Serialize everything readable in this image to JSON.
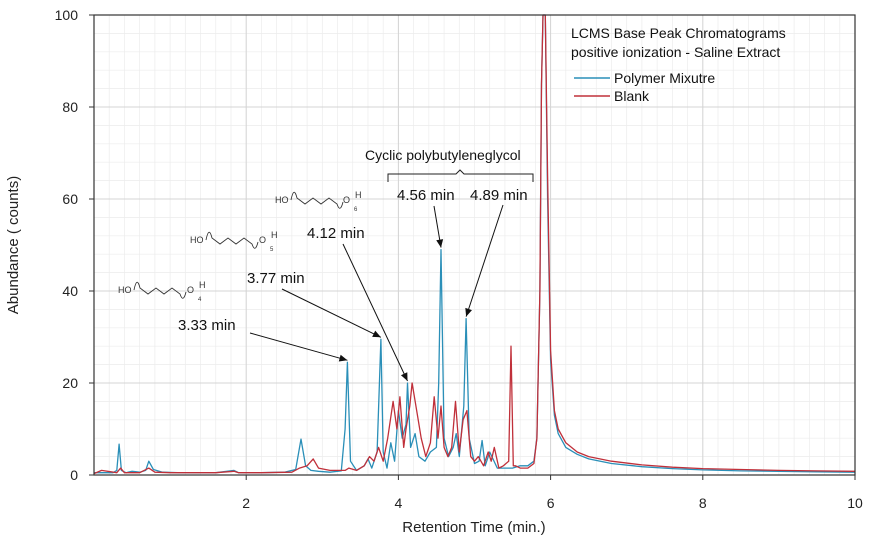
{
  "chart_data": {
    "type": "line",
    "xlabel": "Retention Time (min.)",
    "ylabel": "Abundance ( counts)",
    "xlim": [
      0,
      10
    ],
    "ylim": [
      0,
      100
    ],
    "xticks": [
      2,
      4,
      6,
      8,
      10
    ],
    "yticks": [
      0,
      20,
      40,
      60,
      80,
      100
    ],
    "grid": true,
    "legend_position": "top-right",
    "legend_title_lines": [
      "LCMS Base Peak Chromatograms",
      "positive ionization - Saline Extract"
    ],
    "series": [
      {
        "name": "Polymer Mixutre",
        "color": "#2a8fb8",
        "x": [
          0.0,
          0.15,
          0.25,
          0.3,
          0.33,
          0.36,
          0.42,
          0.5,
          0.6,
          0.68,
          0.72,
          0.78,
          0.9,
          1.1,
          1.3,
          1.6,
          1.84,
          1.9,
          2.2,
          2.5,
          2.65,
          2.72,
          2.78,
          2.85,
          2.95,
          3.1,
          3.25,
          3.3,
          3.33,
          3.37,
          3.45,
          3.55,
          3.6,
          3.65,
          3.72,
          3.77,
          3.8,
          3.85,
          3.9,
          3.95,
          4.0,
          4.05,
          4.1,
          4.12,
          4.16,
          4.22,
          4.27,
          4.35,
          4.42,
          4.5,
          4.53,
          4.56,
          4.6,
          4.66,
          4.72,
          4.76,
          4.8,
          4.86,
          4.89,
          4.93,
          5.0,
          5.06,
          5.1,
          5.14,
          5.2,
          5.3,
          5.4,
          5.5,
          5.6,
          5.7,
          5.78,
          5.82,
          5.86,
          5.88,
          5.9,
          5.93,
          5.96,
          6.0,
          6.05,
          6.1,
          6.2,
          6.35,
          6.5,
          6.8,
          7.2,
          7.6,
          8.0,
          8.5,
          9.0,
          9.5,
          10.0
        ],
        "y": [
          0.5,
          0.5,
          0.5,
          1.0,
          6.7,
          1.0,
          0.5,
          0.8,
          0.6,
          1.0,
          3.0,
          1.2,
          0.6,
          0.5,
          0.5,
          0.5,
          1.0,
          0.5,
          0.5,
          0.6,
          1.2,
          7.8,
          2.0,
          1.0,
          0.8,
          0.6,
          0.9,
          10.0,
          24.5,
          3.0,
          1.0,
          2.0,
          3.5,
          1.5,
          5.0,
          29.5,
          5.0,
          1.5,
          7.0,
          3.0,
          14.0,
          8.0,
          11.0,
          20.0,
          6.0,
          9.0,
          4.0,
          3.0,
          5.0,
          6.0,
          20.0,
          49.0,
          8.0,
          4.0,
          6.0,
          9.0,
          4.0,
          15.0,
          34.0,
          8.0,
          2.5,
          3.0,
          7.5,
          2.0,
          5.0,
          1.5,
          1.5,
          1.5,
          2.0,
          2.0,
          3.0,
          8.0,
          40.0,
          85.0,
          100.0,
          100.0,
          60.0,
          25.0,
          13.0,
          9.0,
          6.0,
          4.5,
          3.5,
          2.5,
          1.8,
          1.4,
          1.1,
          0.9,
          0.8,
          0.7,
          0.6
        ]
      },
      {
        "name": "Blank",
        "color": "#c0303a",
        "x": [
          0.0,
          0.1,
          0.3,
          0.35,
          0.4,
          0.6,
          0.72,
          0.8,
          1.0,
          1.3,
          1.6,
          1.84,
          1.9,
          2.2,
          2.6,
          2.7,
          2.8,
          2.88,
          2.95,
          3.1,
          3.3,
          3.35,
          3.45,
          3.55,
          3.62,
          3.68,
          3.74,
          3.8,
          3.86,
          3.93,
          3.98,
          4.02,
          4.07,
          4.1,
          4.15,
          4.18,
          4.21,
          4.26,
          4.3,
          4.36,
          4.42,
          4.47,
          4.52,
          4.56,
          4.6,
          4.65,
          4.7,
          4.75,
          4.8,
          4.85,
          4.9,
          4.95,
          5.0,
          5.05,
          5.12,
          5.18,
          5.22,
          5.26,
          5.32,
          5.38,
          5.45,
          5.48,
          5.51,
          5.54,
          5.6,
          5.7,
          5.78,
          5.82,
          5.86,
          5.88,
          5.9,
          5.93,
          5.96,
          6.0,
          6.05,
          6.1,
          6.2,
          6.35,
          6.5,
          6.8,
          7.2,
          7.6,
          8.0,
          8.5,
          9.0,
          9.5,
          10.0
        ],
        "y": [
          0.3,
          1.0,
          0.5,
          1.5,
          0.5,
          0.5,
          1.5,
          0.6,
          0.5,
          0.5,
          0.5,
          0.8,
          0.5,
          0.5,
          0.6,
          1.5,
          2.0,
          3.5,
          1.5,
          1.0,
          1.0,
          1.5,
          1.0,
          2.0,
          4.0,
          3.0,
          6.0,
          3.0,
          8.0,
          16.0,
          10.0,
          17.0,
          6.0,
          10.0,
          15.0,
          20.0,
          17.0,
          12.0,
          8.0,
          4.0,
          7.0,
          17.0,
          8.0,
          15.0,
          6.0,
          4.0,
          6.0,
          16.0,
          5.0,
          12.0,
          14.0,
          4.0,
          3.0,
          4.0,
          2.0,
          5.0,
          3.0,
          6.0,
          1.5,
          2.0,
          3.0,
          28.0,
          2.0,
          2.0,
          1.5,
          1.5,
          2.5,
          8.0,
          40.0,
          85.0,
          100.0,
          100.0,
          65.0,
          27.0,
          14.0,
          10.0,
          7.0,
          5.0,
          4.0,
          3.0,
          2.2,
          1.7,
          1.4,
          1.2,
          1.0,
          0.9,
          0.8
        ]
      }
    ],
    "peak_labels": [
      {
        "text": "3.33 min",
        "peak_x": 3.33,
        "peak_y": 24.5
      },
      {
        "text": "3.77 min",
        "peak_x": 3.77,
        "peak_y": 29.5
      },
      {
        "text": "4.12 min",
        "peak_x": 4.12,
        "peak_y": 20.0
      },
      {
        "text": "4.56 min",
        "peak_x": 4.56,
        "peak_y": 49.0
      },
      {
        "text": "4.89 min",
        "peak_x": 4.89,
        "peak_y": 34.0
      }
    ],
    "bracket_label": "Cyclic polybutyleneglycol",
    "structures": [
      {
        "prefix": "HO",
        "suffix": "O",
        "end": "H",
        "n": "4"
      },
      {
        "prefix": "HO",
        "suffix": "O",
        "end": "H",
        "n": "5"
      },
      {
        "prefix": "HO",
        "suffix": "O",
        "end": "H",
        "n": "6"
      }
    ]
  }
}
